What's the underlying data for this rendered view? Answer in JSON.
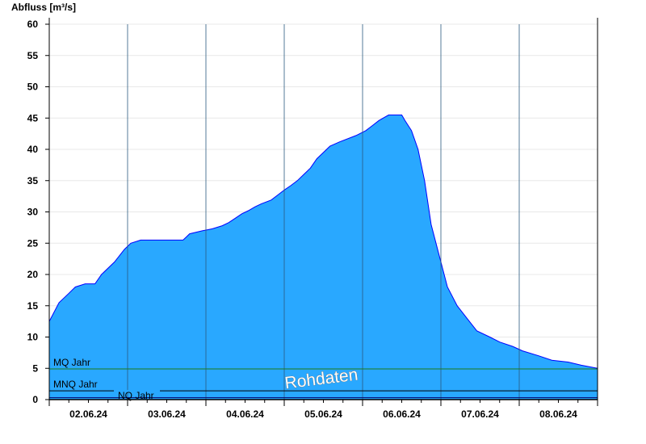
{
  "chart_data": {
    "type": "area",
    "title": "",
    "ylabel": "Abfluss [m³/s]",
    "xlabel": "",
    "ylim": [
      0,
      60
    ],
    "yticks": [
      0,
      5,
      10,
      15,
      20,
      25,
      30,
      35,
      40,
      45,
      50,
      55,
      60
    ],
    "xrange": [
      "02.06.24 00:00",
      "09.06.24 00:00"
    ],
    "xtick_labels": [
      "02.06.24",
      "03.06.24",
      "04.06.24",
      "05.06.24",
      "06.06.24",
      "07.06.24",
      "08.06.24"
    ],
    "grid": "horizontal",
    "fill_color": "#29a8ff",
    "line_color": "#0000ff",
    "watermark": "Rohdaten",
    "reference_lines": [
      {
        "label": "MQ Jahr",
        "value": 4.9,
        "color": "#1a7a1a"
      },
      {
        "label": "MNQ Jahr",
        "value": 1.4,
        "color": "#000000"
      },
      {
        "label": "NQ Jahr",
        "value": 0.3,
        "color": "#00006e"
      }
    ],
    "series": [
      {
        "points": [
          [
            "02.06.24 00:00",
            12.5
          ],
          [
            "02.06.24 03:00",
            15.5
          ],
          [
            "02.06.24 06:00",
            17
          ],
          [
            "02.06.24 08:00",
            18
          ],
          [
            "02.06.24 11:00",
            18.5
          ],
          [
            "02.06.24 14:00",
            18.5
          ],
          [
            "02.06.24 16:00",
            20
          ],
          [
            "02.06.24 20:00",
            22
          ],
          [
            "02.06.24 23:00",
            24
          ],
          [
            "03.06.24 01:00",
            25
          ],
          [
            "03.06.24 04:00",
            25.5
          ],
          [
            "03.06.24 17:00",
            25.5
          ],
          [
            "03.06.24 18:00",
            26
          ],
          [
            "03.06.24 19:00",
            26.5
          ],
          [
            "03.06.24 23:00",
            27
          ],
          [
            "04.06.24 02:00",
            27.3
          ],
          [
            "04.06.24 05:00",
            27.8
          ],
          [
            "04.06.24 07:00",
            28.3
          ],
          [
            "04.06.24 09:00",
            29
          ],
          [
            "04.06.24 11:00",
            29.7
          ],
          [
            "04.06.24 13:00",
            30.2
          ],
          [
            "04.06.24 15:00",
            30.8
          ],
          [
            "04.06.24 17:00",
            31.3
          ],
          [
            "04.06.24 20:00",
            31.9
          ],
          [
            "04.06.24 22:00",
            32.7
          ],
          [
            "05.06.24 00:00",
            33.5
          ],
          [
            "05.06.24 02:00",
            34.2
          ],
          [
            "05.06.24 04:00",
            35
          ],
          [
            "05.06.24 06:00",
            36
          ],
          [
            "05.06.24 08:00",
            37
          ],
          [
            "05.06.24 10:00",
            38.5
          ],
          [
            "05.06.24 12:00",
            39.5
          ],
          [
            "05.06.24 14:00",
            40.5
          ],
          [
            "05.06.24 17:00",
            41.2
          ],
          [
            "05.06.24 22:00",
            42.2
          ],
          [
            "06.06.24 01:00",
            43
          ],
          [
            "06.06.24 03:00",
            43.8
          ],
          [
            "06.06.24 05:00",
            44.6
          ],
          [
            "06.06.24 08:00",
            45.5
          ],
          [
            "06.06.24 12:00",
            45.5
          ],
          [
            "06.06.24 13:00",
            44.6
          ],
          [
            "06.06.24 15:00",
            43
          ],
          [
            "06.06.24 17:00",
            40
          ],
          [
            "06.06.24 19:00",
            35
          ],
          [
            "06.06.24 21:00",
            28
          ],
          [
            "07.06.24 00:00",
            22
          ],
          [
            "07.06.24 02:00",
            18
          ],
          [
            "07.06.24 05:00",
            15
          ],
          [
            "07.06.24 08:00",
            13
          ],
          [
            "07.06.24 11:00",
            11
          ],
          [
            "07.06.24 15:00",
            10
          ],
          [
            "07.06.24 18:00",
            9.2
          ],
          [
            "07.06.24 22:00",
            8.5
          ],
          [
            "08.06.24 01:00",
            7.8
          ],
          [
            "08.06.24 06:00",
            7
          ],
          [
            "08.06.24 10:00",
            6.3
          ],
          [
            "08.06.24 15:00",
            6.0
          ],
          [
            "08.06.24 19:00",
            5.5
          ],
          [
            "09.06.24 00:00",
            5.0
          ]
        ]
      }
    ]
  }
}
